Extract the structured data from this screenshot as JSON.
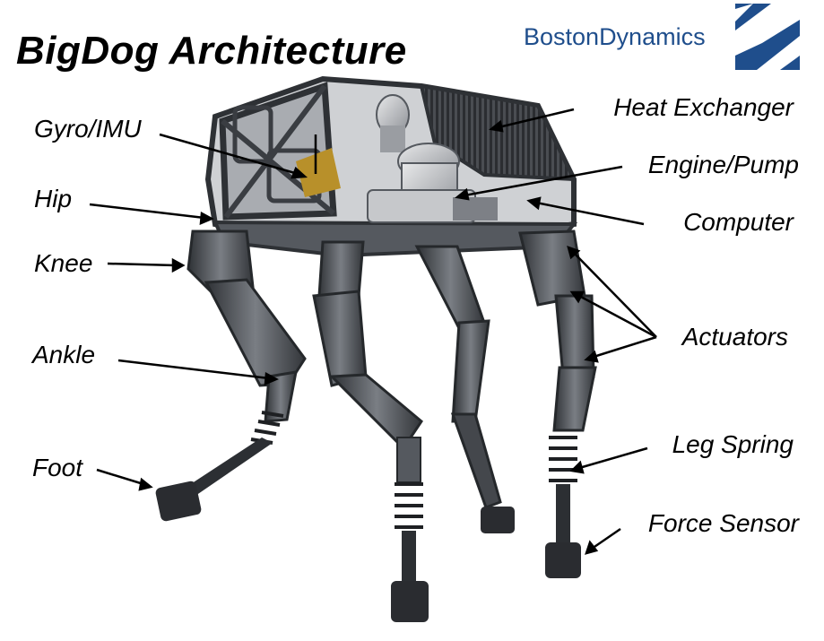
{
  "title": "BigDog Architecture",
  "logo": {
    "word1": "Boston",
    "word2": "Dynamics",
    "mark_icon": "boston-dynamics-logo-mark"
  },
  "labels": {
    "gyro": "Gyro/IMU",
    "hip": "Hip",
    "knee": "Knee",
    "ankle": "Ankle",
    "foot": "Foot",
    "heat_exchanger": "Heat Exchanger",
    "engine": "Engine/Pump",
    "computer": "Computer",
    "actuators": "Actuators",
    "leg_spring": "Leg Spring",
    "force_sensor": "Force Sensor"
  },
  "colors": {
    "text": "#000000",
    "logo_blue": "#1f4e8c",
    "frame_dark": "#3a3d42",
    "frame_mid": "#6b6f75",
    "accent_gold": "#b8902a"
  }
}
